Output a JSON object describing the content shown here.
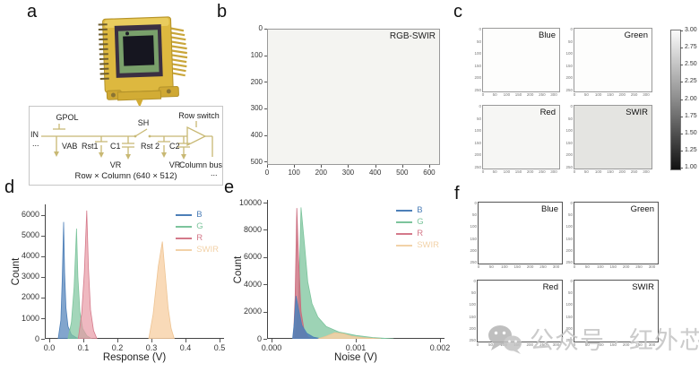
{
  "panels": {
    "a": {
      "label": "a",
      "circuit": {
        "gpol": "GPOL",
        "in": "IN",
        "dots_left": "...",
        "vab": "VAB",
        "rst1": "Rst1",
        "c1": "C1",
        "sh": "SH",
        "rst2": "Rst 2",
        "c2": "C2",
        "vr1": "VR",
        "vr2": "VR",
        "row_switch": "Row switch",
        "column_bus": "Column bus",
        "caption": "Row × Column (640 × 512)",
        "dots_right": "..."
      }
    },
    "b": {
      "label": "b",
      "title": "RGB-SWIR",
      "axes": {
        "x": {
          "min": 0,
          "max": 640,
          "values": [
            0,
            100,
            200,
            300,
            400,
            500,
            600
          ],
          "labels": [
            "0",
            "100",
            "200",
            "300",
            "400",
            "500",
            "600"
          ]
        },
        "y": {
          "min": 0,
          "max": 512,
          "inverted": true,
          "values": [
            0,
            100,
            200,
            300,
            400,
            500
          ],
          "labels": [
            "0",
            "100",
            "200",
            "300",
            "400",
            "500"
          ]
        }
      }
    },
    "c": {
      "label": "c",
      "subpanels": [
        {
          "title": "Blue"
        },
        {
          "title": "Green"
        },
        {
          "title": "Red"
        },
        {
          "title": "SWIR"
        }
      ],
      "colorbar": {
        "labels": [
          "3.00",
          "2.75",
          "2.50",
          "2.25",
          "2.00",
          "1.75",
          "1.50",
          "1.25",
          "1.00"
        ]
      }
    },
    "d": {
      "label": "d",
      "xlabel": "Response (V)",
      "ylabel": "Count"
    },
    "e": {
      "label": "e",
      "xlabel": "Noise (V)",
      "ylabel": "Count"
    },
    "f": {
      "label": "f",
      "subpanels": [
        {
          "title": "Blue"
        },
        {
          "title": "Green"
        },
        {
          "title": "Red"
        },
        {
          "title": "SWIR"
        }
      ]
    }
  },
  "mini_axes": {
    "x_labels": [
      "0",
      "50",
      "100",
      "150",
      "200",
      "250",
      "300"
    ],
    "y_labels": [
      "0",
      "50",
      "100",
      "150",
      "200",
      "250"
    ]
  },
  "watermark": {
    "icon": "wechat-icon",
    "text": "公众号 · 红外芯闻"
  },
  "chart_data": [
    {
      "id": "b",
      "type": "heatmap",
      "title": "RGB-SWIR",
      "xlim": [
        0,
        640
      ],
      "ylim": [
        512,
        0
      ],
      "note": "uniform near-white 640×512 composite image, no visible features"
    },
    {
      "id": "d",
      "type": "area",
      "title": "",
      "xlabel": "Response (V)",
      "ylabel": "Count",
      "xlim": [
        0,
        0.5
      ],
      "ylim": [
        0,
        6500
      ],
      "grid": false,
      "legend_position": "top-right",
      "x_ticks": {
        "values": [
          0,
          0.1,
          0.2,
          0.3,
          0.4,
          0.5
        ],
        "labels": [
          "0.0",
          "0.1",
          "0.2",
          "0.3",
          "0.4",
          "0.5"
        ]
      },
      "y_ticks": {
        "values": [
          0,
          1000,
          2000,
          3000,
          4000,
          5000,
          6000
        ],
        "labels": [
          "0",
          "1000",
          "2000",
          "3000",
          "4000",
          "5000",
          "6000"
        ]
      },
      "legend": [
        {
          "name": "B",
          "color": "#4d7fb8"
        },
        {
          "name": "G",
          "color": "#7cc49c"
        },
        {
          "name": "R",
          "color": "#d4798a"
        },
        {
          "name": "SWIR",
          "color": "#f2d2a8"
        }
      ],
      "series": [
        {
          "name": "B",
          "color": "#4d7fb8",
          "fill": "rgba(77,127,184,0.70)",
          "peak_x": 0.042,
          "peak_y": 5650,
          "points": [
            [
              0.026,
              0
            ],
            [
              0.034,
              900
            ],
            [
              0.038,
              2800
            ],
            [
              0.042,
              5650
            ],
            [
              0.045,
              3200
            ],
            [
              0.049,
              1500
            ],
            [
              0.055,
              600
            ],
            [
              0.065,
              200
            ],
            [
              0.08,
              50
            ],
            [
              0.09,
              0
            ]
          ]
        },
        {
          "name": "G",
          "color": "#7cc49c",
          "fill": "rgba(124,196,156,0.70)",
          "peak_x": 0.08,
          "peak_y": 5330,
          "points": [
            [
              0.055,
              0
            ],
            [
              0.065,
              800
            ],
            [
              0.073,
              2500
            ],
            [
              0.08,
              5330
            ],
            [
              0.084,
              3000
            ],
            [
              0.09,
              1300
            ],
            [
              0.098,
              500
            ],
            [
              0.11,
              150
            ],
            [
              0.125,
              0
            ]
          ]
        },
        {
          "name": "R",
          "color": "#d4798a",
          "fill": "rgba(232,150,162,0.68)",
          "peak_x": 0.11,
          "peak_y": 6200,
          "points": [
            [
              0.085,
              0
            ],
            [
              0.095,
              1200
            ],
            [
              0.103,
              3200
            ],
            [
              0.11,
              6200
            ],
            [
              0.115,
              3400
            ],
            [
              0.121,
              1400
            ],
            [
              0.13,
              400
            ],
            [
              0.14,
              0
            ]
          ]
        },
        {
          "name": "SWIR",
          "color": "#eec493",
          "fill": "rgba(247,208,164,0.78)",
          "peak_x": 0.333,
          "peak_y": 4700,
          "points": [
            [
              0.292,
              0
            ],
            [
              0.305,
              1200
            ],
            [
              0.32,
              3500
            ],
            [
              0.332,
              4700
            ],
            [
              0.34,
              3200
            ],
            [
              0.349,
              1500
            ],
            [
              0.358,
              500
            ],
            [
              0.367,
              0
            ]
          ]
        }
      ]
    },
    {
      "id": "e",
      "type": "area",
      "title": "",
      "xlabel": "Noise (V)",
      "ylabel": "Count",
      "xlim": [
        0,
        0.002
      ],
      "ylim": [
        0,
        10200
      ],
      "grid": false,
      "legend_position": "top-right",
      "x_ticks": {
        "values": [
          0,
          0.001,
          0.002
        ],
        "labels": [
          "0.000",
          "0.001",
          "0.002"
        ]
      },
      "y_ticks": {
        "values": [
          0,
          2000,
          4000,
          6000,
          8000,
          10000
        ],
        "labels": [
          "0",
          "2000",
          "4000",
          "6000",
          "8000",
          "10000"
        ]
      },
      "legend": [
        {
          "name": "B",
          "color": "#4d7fb8"
        },
        {
          "name": "G",
          "color": "#7cc49c"
        },
        {
          "name": "R",
          "color": "#d4798a"
        },
        {
          "name": "SWIR",
          "color": "#f2d2a8"
        }
      ],
      "series": [
        {
          "name": "G",
          "color": "#7cc49c",
          "fill": "rgba(124,196,156,0.75)",
          "peak_x": 0.00035,
          "peak_y": 9650,
          "points": [
            [
              0.00028,
              0
            ],
            [
              0.00032,
              2500
            ],
            [
              0.00035,
              9650
            ],
            [
              0.00039,
              7000
            ],
            [
              0.00043,
              4200
            ],
            [
              0.00048,
              2600
            ],
            [
              0.00055,
              1600
            ],
            [
              0.00065,
              900
            ],
            [
              0.0008,
              500
            ],
            [
              0.001,
              250
            ],
            [
              0.0012,
              100
            ],
            [
              0.00145,
              0
            ]
          ]
        },
        {
          "name": "R",
          "color": "#c96a7c",
          "fill": "rgba(205,110,125,0.80)",
          "peak_x": 0.0003,
          "peak_y": 9600,
          "points": [
            [
              0.00026,
              0
            ],
            [
              0.00028,
              3000
            ],
            [
              0.0003,
              9600
            ],
            [
              0.00032,
              6000
            ],
            [
              0.00035,
              2000
            ],
            [
              0.00039,
              500
            ],
            [
              0.00044,
              100
            ],
            [
              0.0005,
              0
            ]
          ]
        },
        {
          "name": "B",
          "color": "#4d7fb8",
          "fill": "rgba(77,127,184,0.85)",
          "peak_x": 0.00029,
          "peak_y": 3150,
          "points": [
            [
              0.00025,
              0
            ],
            [
              0.00027,
              1200
            ],
            [
              0.00029,
              3150
            ],
            [
              0.00032,
              2200
            ],
            [
              0.00036,
              1000
            ],
            [
              0.00042,
              400
            ],
            [
              0.0005,
              120
            ],
            [
              0.0006,
              0
            ]
          ]
        },
        {
          "name": "SWIR",
          "color": "#eec493",
          "fill": "rgba(247,208,164,0.85)",
          "peak_x": 0.0008,
          "peak_y": 450,
          "points": [
            [
              0.00055,
              0
            ],
            [
              0.00065,
              200
            ],
            [
              0.00075,
              450
            ],
            [
              0.00085,
              380
            ],
            [
              0.00095,
              200
            ],
            [
              0.0011,
              80
            ],
            [
              0.0013,
              0
            ]
          ]
        }
      ]
    }
  ]
}
